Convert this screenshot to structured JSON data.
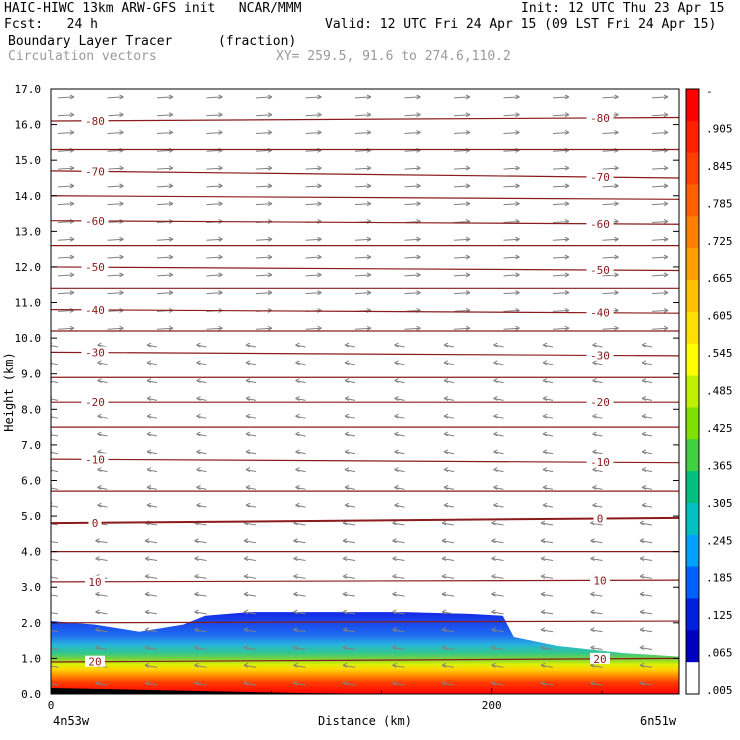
{
  "header": {
    "line1_left": "HAIC-HIWC 13km ARW-GFS init   NCAR/MMM",
    "line1_right": "Init: 12 UTC Thu 23 Apr 15",
    "line2_left": "Fcst:   24 h",
    "line2_right": "Valid: 12 UTC Fri 24 Apr 15 (09 LST Fri 24 Apr 15)",
    "line3_left": "Boundary Layer Tracer",
    "line3_units": "(fraction)",
    "line4_left": "Circulation vectors",
    "line4_xy": "XY= 259.5, 91.6 to 274.6,110.2"
  },
  "chart_data": {
    "type": "cross-section",
    "ylabel": "Height (km)",
    "xlabel": "Distance (km)",
    "ylim": [
      0,
      17
    ],
    "xlim": [
      0,
      285
    ],
    "yticks": [
      "0.0",
      "1.0",
      "2.0",
      "3.0",
      "4.0",
      "5.0",
      "6.0",
      "7.0",
      "8.0",
      "9.0",
      "10.0",
      "11.0",
      "12.0",
      "13.0",
      "14.0",
      "15.0",
      "16.0",
      "17.0"
    ],
    "xtick_values": [
      0,
      200
    ],
    "xtick_labels": [
      "0",
      "200"
    ],
    "endpoint_left": "4n53w",
    "endpoint_right": "6n51w",
    "colorbar": {
      "labels": [
        "-",
        ".905",
        ".845",
        ".785",
        ".725",
        ".665",
        ".605",
        ".545",
        ".485",
        ".425",
        ".365",
        ".305",
        ".245",
        ".185",
        ".125",
        ".065",
        ".005"
      ],
      "colors": [
        "#ff0000",
        "#ff2000",
        "#ff4000",
        "#ff6000",
        "#ff8000",
        "#ffa000",
        "#ffc000",
        "#ffe000",
        "#ffff00",
        "#c0f000",
        "#80e000",
        "#40d040",
        "#00c080",
        "#00c0c0",
        "#00a0ff",
        "#0060ff",
        "#0020e0",
        "#0000c0",
        "#ffffff"
      ]
    },
    "temperature_contours": [
      {
        "label": "-80",
        "values": [
          16.1,
          16.2
        ]
      },
      {
        "label": "",
        "values": [
          15.3,
          15.3
        ]
      },
      {
        "label": "-70",
        "values": [
          14.7,
          14.5
        ]
      },
      {
        "label": "",
        "values": [
          14.0,
          13.9
        ]
      },
      {
        "label": "-60",
        "values": [
          13.3,
          13.2
        ]
      },
      {
        "label": "",
        "values": [
          12.6,
          12.6
        ]
      },
      {
        "label": "-50",
        "values": [
          12.0,
          11.9
        ]
      },
      {
        "label": "",
        "values": [
          11.4,
          11.4
        ]
      },
      {
        "label": "-40",
        "values": [
          10.8,
          10.7
        ]
      },
      {
        "label": "",
        "values": [
          10.2,
          10.2
        ]
      },
      {
        "label": "-30",
        "values": [
          9.6,
          9.5
        ]
      },
      {
        "label": "",
        "values": [
          8.9,
          8.9
        ]
      },
      {
        "label": "-20",
        "values": [
          8.2,
          8.2
        ]
      },
      {
        "label": "",
        "values": [
          7.5,
          7.5
        ]
      },
      {
        "label": "-10",
        "values": [
          6.6,
          6.5
        ]
      },
      {
        "label": "",
        "values": [
          5.7,
          5.7
        ]
      },
      {
        "label": "0",
        "values": [
          4.8,
          4.95
        ]
      },
      {
        "label": "",
        "values": [
          4.0,
          4.0
        ]
      },
      {
        "label": "10",
        "values": [
          3.15,
          3.2
        ]
      },
      {
        "label": "",
        "values": [
          2.0,
          2.05
        ]
      },
      {
        "label": "20",
        "values": [
          0.9,
          1.0
        ]
      }
    ],
    "tracer_top_profile": {
      "x": [
        0,
        20,
        40,
        60,
        70,
        90,
        120,
        160,
        190,
        205,
        210,
        230,
        260,
        285
      ],
      "y": [
        2.05,
        1.95,
        1.75,
        1.95,
        2.2,
        2.3,
        2.3,
        2.3,
        2.25,
        2.2,
        1.6,
        1.35,
        1.15,
        1.05
      ]
    }
  }
}
